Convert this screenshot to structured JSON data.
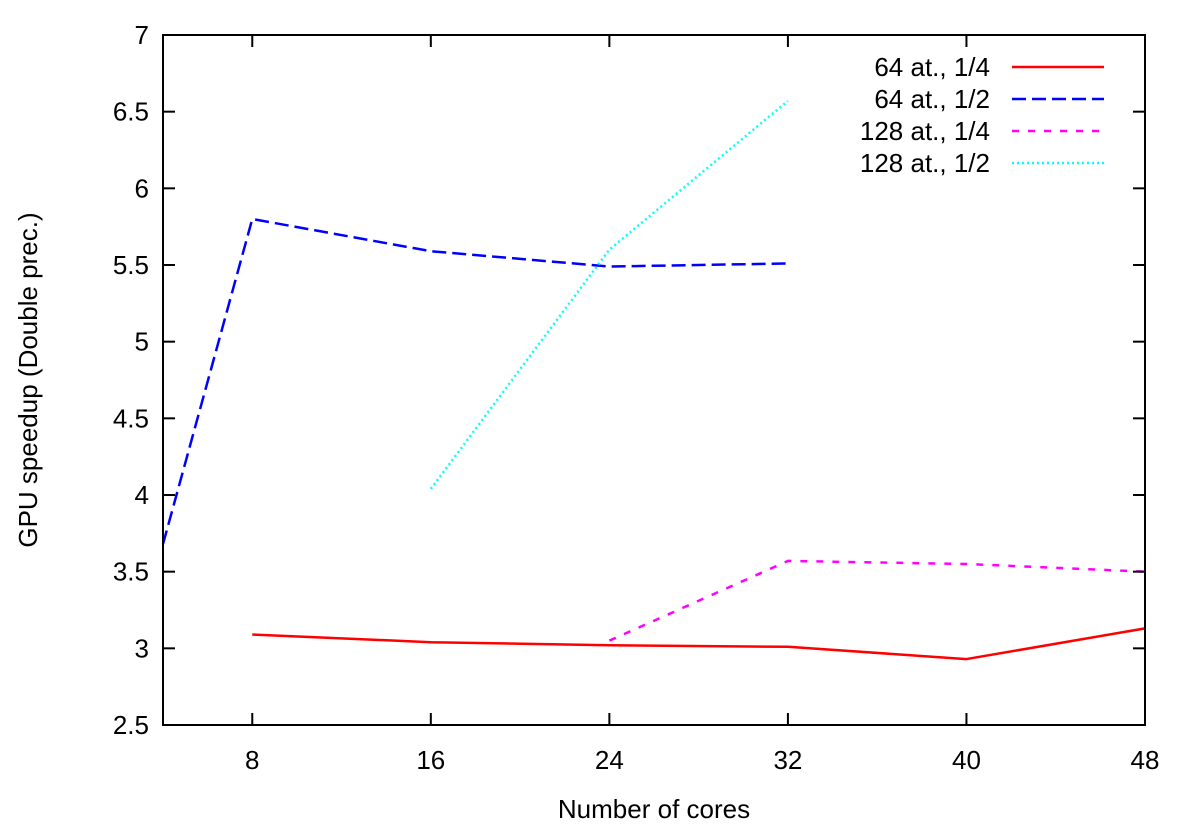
{
  "chart_data": {
    "type": "line",
    "title": "",
    "xlabel": "Number of cores",
    "ylabel": "GPU speedup (Double prec.)",
    "xlim": [
      4,
      48
    ],
    "ylim": [
      2.5,
      7
    ],
    "xticks": [
      8,
      16,
      24,
      32,
      40,
      48
    ],
    "xtick_labels": [
      "8",
      "16",
      "24",
      "32",
      "40",
      "48"
    ],
    "yticks": [
      2.5,
      3,
      3.5,
      4,
      4.5,
      5,
      5.5,
      6,
      6.5,
      7
    ],
    "ytick_labels": [
      "2.5",
      "3",
      "3.5",
      "4",
      "4.5",
      "5",
      "5.5",
      "6",
      "6.5",
      "7"
    ],
    "grid": false,
    "legend_position": "top-right",
    "series": [
      {
        "name": "64 at., 1/4",
        "color": "#ff0000",
        "dash": "solid",
        "x": [
          8,
          16,
          24,
          32,
          40,
          48
        ],
        "y": [
          3.09,
          3.04,
          3.02,
          3.01,
          2.93,
          3.13
        ]
      },
      {
        "name": "64 at., 1/2",
        "color": "#0000ff",
        "dash": "dashed",
        "x": [
          4,
          8,
          16,
          24,
          32
        ],
        "y": [
          3.68,
          5.8,
          5.59,
          5.49,
          5.51
        ]
      },
      {
        "name": "128 at., 1/4",
        "color": "#ff00ff",
        "dash": "short-dash",
        "x": [
          24,
          32,
          40,
          48
        ],
        "y": [
          3.05,
          3.57,
          3.55,
          3.5
        ]
      },
      {
        "name": "128 at., 1/2",
        "color": "#00ffff",
        "dash": "dotted",
        "x": [
          16,
          24,
          32
        ],
        "y": [
          4.04,
          5.6,
          6.57
        ]
      }
    ]
  }
}
